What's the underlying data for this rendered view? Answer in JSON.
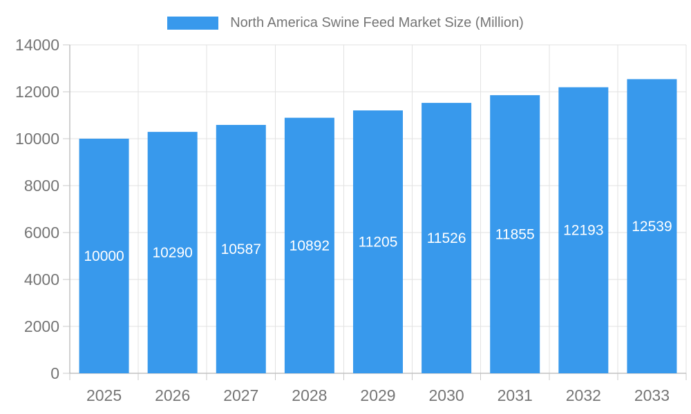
{
  "chart_data": {
    "type": "bar",
    "title": "",
    "legend": {
      "label": "North America Swine Feed Market Size (Million)",
      "position": "top"
    },
    "categories": [
      "2025",
      "2026",
      "2027",
      "2028",
      "2029",
      "2030",
      "2031",
      "2032",
      "2033"
    ],
    "series": [
      {
        "name": "North America Swine Feed Market Size (Million)",
        "values": [
          10000,
          10290,
          10587,
          10892,
          11205,
          11526,
          11855,
          12193,
          12539
        ]
      }
    ],
    "value_labels_shown": true,
    "xlabel": "",
    "ylabel": "",
    "ylim": [
      0,
      14000
    ],
    "ytick_step": 2000,
    "ytick_labels": [
      "0",
      "2000",
      "4000",
      "6000",
      "8000",
      "10000",
      "12000",
      "14000"
    ],
    "grid": true,
    "legend_position": "top",
    "colors": {
      "bar": "#3899EC",
      "axis_text": "#757575",
      "value_label_text": "#FFFFFF",
      "gridline": "#E2E2E2",
      "axis_line": "#A3A3A3",
      "tick": "#C9C9C9",
      "background": "#FFFFFF"
    }
  }
}
